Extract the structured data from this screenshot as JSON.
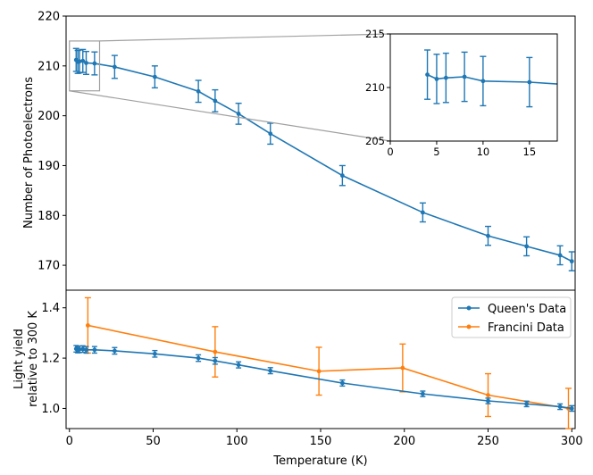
{
  "chart_data": [
    {
      "id": "top",
      "type": "line",
      "ylabel": "Number of Photoelectrons",
      "xlim": [
        -2,
        302
      ],
      "ylim": [
        165,
        220
      ],
      "yticks": [
        170,
        180,
        190,
        200,
        210,
        220
      ],
      "grid": false,
      "series": [
        {
          "name": "Photoelectrons",
          "color": "#1f77b4",
          "points": [
            {
              "x": 4,
              "y": 211.2,
              "err": 2.3
            },
            {
              "x": 5,
              "y": 210.8,
              "err": 2.3
            },
            {
              "x": 6,
              "y": 210.9,
              "err": 2.3
            },
            {
              "x": 8,
              "y": 211.0,
              "err": 2.3
            },
            {
              "x": 10,
              "y": 210.6,
              "err": 2.3
            },
            {
              "x": 15,
              "y": 210.5,
              "err": 2.3
            },
            {
              "x": 27,
              "y": 209.8,
              "err": 2.3
            },
            {
              "x": 51,
              "y": 207.8,
              "err": 2.2
            },
            {
              "x": 77,
              "y": 204.9,
              "err": 2.2
            },
            {
              "x": 87,
              "y": 203.0,
              "err": 2.2
            },
            {
              "x": 101,
              "y": 200.4,
              "err": 2.1
            },
            {
              "x": 120,
              "y": 196.4,
              "err": 2.1
            },
            {
              "x": 163,
              "y": 188.0,
              "err": 2.0
            },
            {
              "x": 211,
              "y": 180.6,
              "err": 1.9
            },
            {
              "x": 250,
              "y": 175.9,
              "err": 1.9
            },
            {
              "x": 273,
              "y": 173.8,
              "err": 1.9
            },
            {
              "x": 293,
              "y": 172.0,
              "err": 1.9
            },
            {
              "x": 300,
              "y": 170.8,
              "err": 1.9
            }
          ]
        }
      ]
    },
    {
      "id": "inset",
      "type": "line",
      "xlim": [
        0,
        18
      ],
      "ylim": [
        205,
        215
      ],
      "xticks": [
        0,
        5,
        10,
        15
      ],
      "yticks": [
        205,
        210,
        215
      ],
      "color": "#1f77b4"
    },
    {
      "id": "bottom",
      "type": "line",
      "xlabel": "Temperature (K)",
      "ylabel_line1": "Light yield",
      "ylabel_line2": "relative to 300 K",
      "xlim": [
        -2,
        302
      ],
      "ylim": [
        0.92,
        1.47
      ],
      "xticks": [
        0,
        50,
        100,
        150,
        200,
        250,
        300
      ],
      "yticks": [
        1.0,
        1.2,
        1.4
      ],
      "legend_position": "top-right",
      "series": [
        {
          "name": "Queen's Data",
          "color": "#1f77b4",
          "points": [
            {
              "x": 4,
              "y": 1.237,
              "err": 0.013
            },
            {
              "x": 5,
              "y": 1.234,
              "err": 0.013
            },
            {
              "x": 6,
              "y": 1.235,
              "err": 0.013
            },
            {
              "x": 8,
              "y": 1.236,
              "err": 0.013
            },
            {
              "x": 10,
              "y": 1.233,
              "err": 0.013
            },
            {
              "x": 15,
              "y": 1.233,
              "err": 0.013
            },
            {
              "x": 27,
              "y": 1.229,
              "err": 0.013
            },
            {
              "x": 51,
              "y": 1.217,
              "err": 0.013
            },
            {
              "x": 77,
              "y": 1.2,
              "err": 0.013
            },
            {
              "x": 87,
              "y": 1.189,
              "err": 0.013
            },
            {
              "x": 101,
              "y": 1.173,
              "err": 0.012
            },
            {
              "x": 120,
              "y": 1.15,
              "err": 0.012
            },
            {
              "x": 163,
              "y": 1.101,
              "err": 0.012
            },
            {
              "x": 211,
              "y": 1.058,
              "err": 0.011
            },
            {
              "x": 250,
              "y": 1.03,
              "err": 0.011
            },
            {
              "x": 273,
              "y": 1.018,
              "err": 0.011
            },
            {
              "x": 293,
              "y": 1.007,
              "err": 0.011
            },
            {
              "x": 300,
              "y": 1.0,
              "err": 0.011
            }
          ]
        },
        {
          "name": "Francini Data",
          "color": "#ff7f0e",
          "points": [
            {
              "x": 11,
              "y": 1.33,
              "err": 0.11
            },
            {
              "x": 87,
              "y": 1.225,
              "err": 0.1
            },
            {
              "x": 149,
              "y": 1.148,
              "err": 0.095
            },
            {
              "x": 199,
              "y": 1.161,
              "err": 0.095
            },
            {
              "x": 250,
              "y": 1.053,
              "err": 0.085
            },
            {
              "x": 298,
              "y": 1.0,
              "err": 0.08
            }
          ]
        }
      ]
    }
  ]
}
